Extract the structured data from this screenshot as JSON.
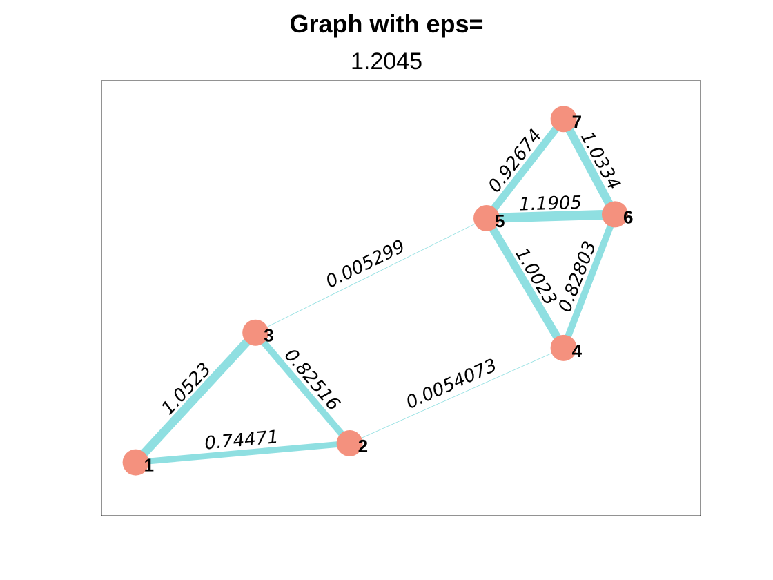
{
  "title": "Graph with eps=",
  "subtitle": "1.2045",
  "colors": {
    "node": "#f4917e",
    "edge": "#8fdfe1",
    "axes": "#262626",
    "text": "#000000"
  },
  "graph": {
    "nodes": [
      {
        "id": "1",
        "x": 1.0,
        "y": 1.0
      },
      {
        "id": "2",
        "x": 3.5,
        "y": 1.25
      },
      {
        "id": "3",
        "x": 2.4,
        "y": 2.7
      },
      {
        "id": "4",
        "x": 6.0,
        "y": 2.5
      },
      {
        "id": "5",
        "x": 5.1,
        "y": 4.2
      },
      {
        "id": "6",
        "x": 6.6,
        "y": 4.25
      },
      {
        "id": "7",
        "x": 6.0,
        "y": 5.5
      }
    ],
    "edges": [
      {
        "source": "1",
        "target": "3",
        "weight": 1.0523,
        "label": "1.0523"
      },
      {
        "source": "1",
        "target": "2",
        "weight": 0.74471,
        "label": "0.74471"
      },
      {
        "source": "3",
        "target": "2",
        "weight": 0.82516,
        "label": "0.82516"
      },
      {
        "source": "3",
        "target": "5",
        "weight": 0.005299,
        "label": "0.005299"
      },
      {
        "source": "2",
        "target": "4",
        "weight": 0.0054073,
        "label": "0.0054073"
      },
      {
        "source": "5",
        "target": "7",
        "weight": 0.92674,
        "label": "0.92674"
      },
      {
        "source": "7",
        "target": "6",
        "weight": 1.0334,
        "label": "1.0334"
      },
      {
        "source": "5",
        "target": "6",
        "weight": 1.1905,
        "label": "1.1905"
      },
      {
        "source": "5",
        "target": "4",
        "weight": 1.0023,
        "label": "1.0023"
      },
      {
        "source": "4",
        "target": "6",
        "weight": 0.82803,
        "label": "0.82803"
      }
    ]
  }
}
